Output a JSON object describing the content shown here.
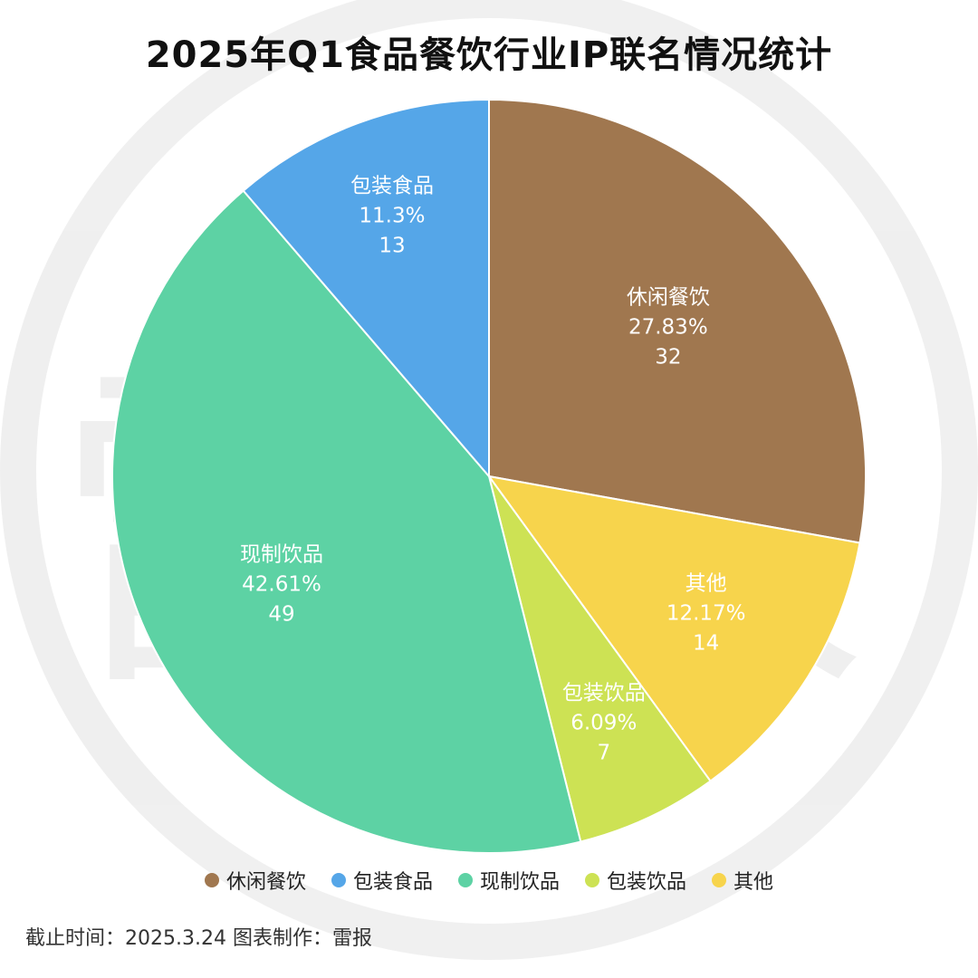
{
  "chart_data": {
    "type": "pie",
    "title": "2025年Q1食品餐饮行业IP联名情况统计",
    "slices": [
      {
        "name": "休闲餐饮",
        "value": 32,
        "percent": "27.83%",
        "color": "#A0774F"
      },
      {
        "name": "其他",
        "value": 14,
        "percent": "12.17%",
        "color": "#F7D44C"
      },
      {
        "name": "包装饮品",
        "value": 7,
        "percent": "6.09%",
        "color": "#CDE254"
      },
      {
        "name": "现制饮品",
        "value": 49,
        "percent": "42.61%",
        "color": "#5DD2A4"
      },
      {
        "name": "包装食品",
        "value": 13,
        "percent": "11.3%",
        "color": "#55A6E8"
      }
    ],
    "legend": [
      "休闲餐饮",
      "包装食品",
      "现制饮品",
      "包装饮品",
      "其他"
    ],
    "legend_position": "bottom"
  },
  "footer": {
    "text": "截止时间：2025.3.24 图表制作：雷报"
  },
  "watermark": "雷报"
}
